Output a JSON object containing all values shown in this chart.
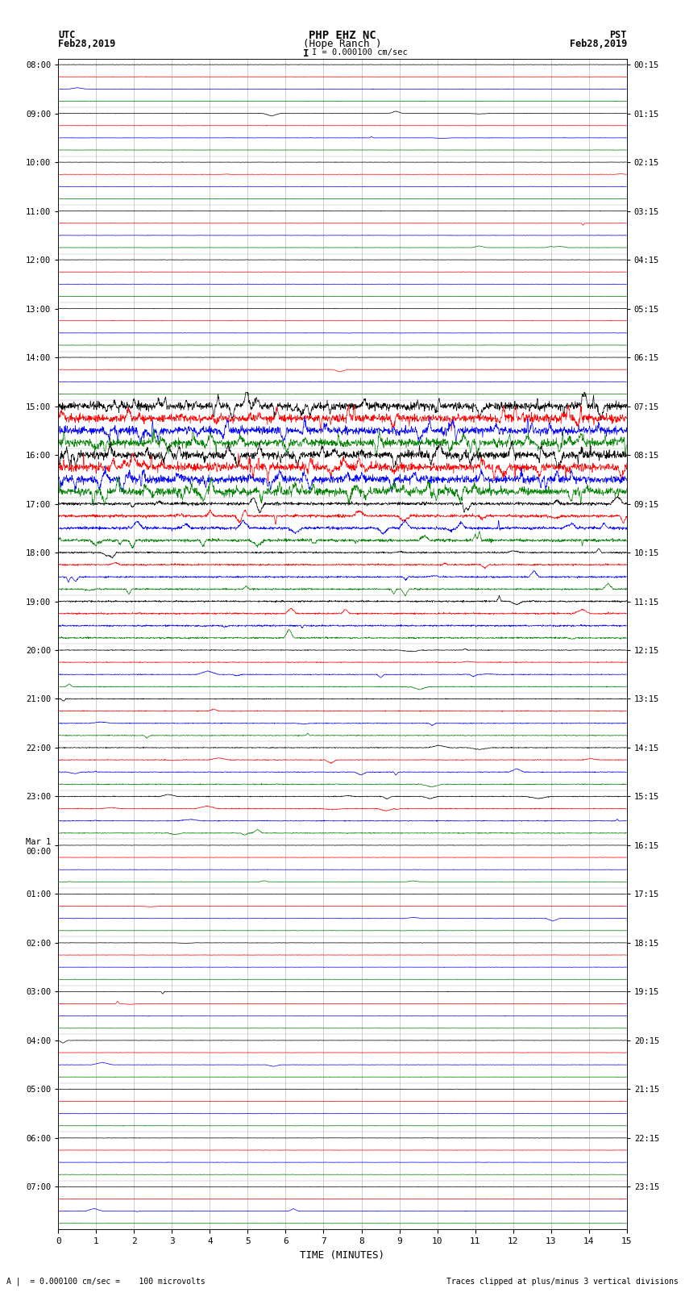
{
  "title_line1": "PHP EHZ NC",
  "title_line2": "(Hope Ranch )",
  "title_line3": "I = 0.000100 cm/sec",
  "left_header_line1": "UTC",
  "left_header_line2": "Feb28,2019",
  "right_header_line1": "PST",
  "right_header_line2": "Feb28,2019",
  "footer_left": "A |  = 0.000100 cm/sec =    100 microvolts",
  "footer_right": "Traces clipped at plus/minus 3 vertical divisions",
  "xlabel": "TIME (MINUTES)",
  "left_times": [
    "08:00",
    "09:00",
    "10:00",
    "11:00",
    "12:00",
    "13:00",
    "14:00",
    "15:00",
    "16:00",
    "17:00",
    "18:00",
    "19:00",
    "20:00",
    "21:00",
    "22:00",
    "23:00",
    "Mar 1\n00:00",
    "01:00",
    "02:00",
    "03:00",
    "04:00",
    "05:00",
    "06:00",
    "07:00"
  ],
  "right_times": [
    "00:15",
    "01:15",
    "02:15",
    "03:15",
    "04:15",
    "05:15",
    "06:15",
    "07:15",
    "08:15",
    "09:15",
    "10:15",
    "11:15",
    "12:15",
    "13:15",
    "14:15",
    "15:15",
    "16:15",
    "17:15",
    "18:15",
    "19:15",
    "20:15",
    "21:15",
    "22:15",
    "23:15"
  ],
  "colors": [
    "black",
    "red",
    "blue",
    "green"
  ],
  "n_hours": 24,
  "n_channels": 4,
  "n_minutes": 15,
  "background_color": "white",
  "seed": 42
}
